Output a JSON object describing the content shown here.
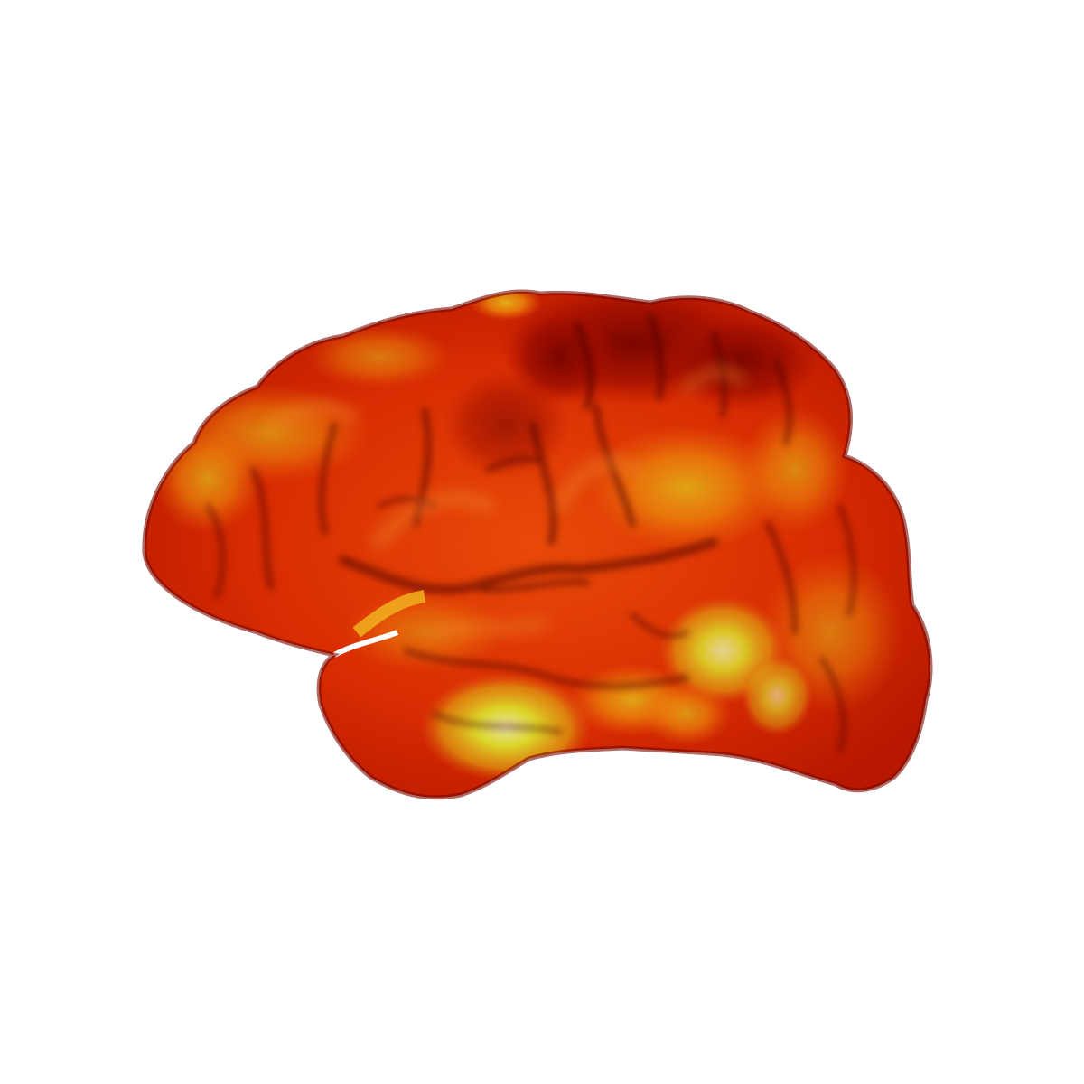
{
  "scene": {
    "subject": "brain-cortical-surface",
    "view": "lateral",
    "colormap": "hot",
    "colors": {
      "background": "#ffffff",
      "dark_red": "#8a0a00",
      "red": "#cf2000",
      "red_orange": "#e83a05",
      "orange": "#f06a0a",
      "amber": "#e89a10",
      "yellow": "#d8d020",
      "pale_yellow": "#e8e4a0",
      "shadow": "#3a0400"
    }
  }
}
